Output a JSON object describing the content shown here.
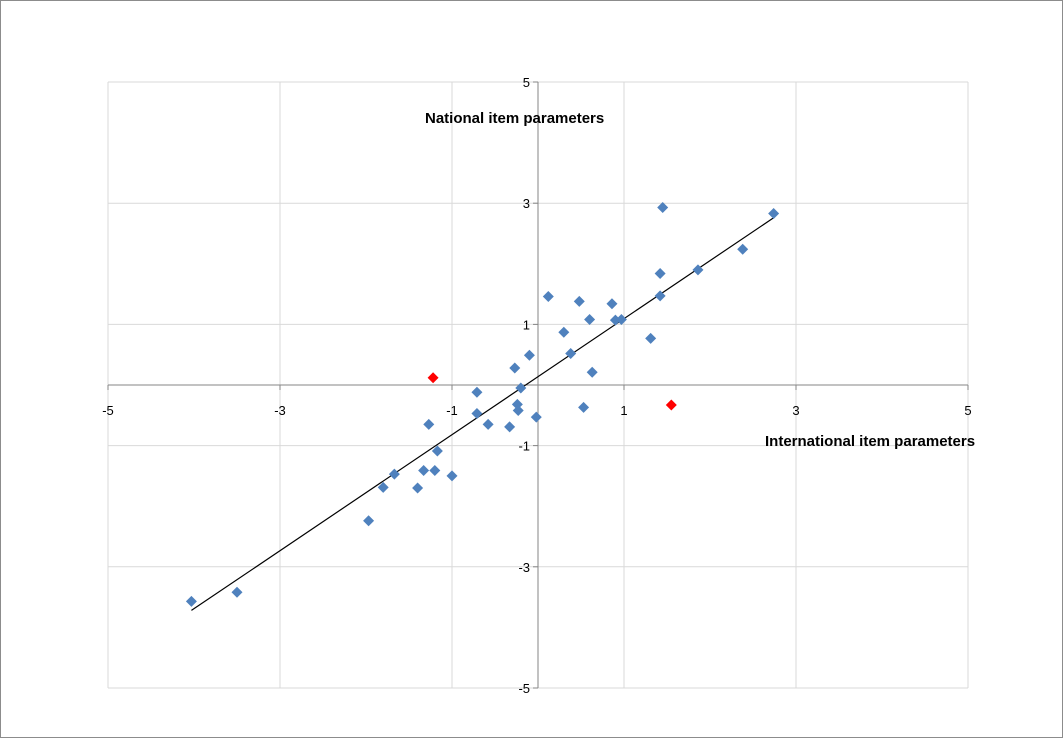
{
  "chart_data": {
    "type": "scatter",
    "xlabel": "International item parameters",
    "ylabel": "National item parameters",
    "xlim": [
      -5,
      5
    ],
    "ylim": [
      -5,
      5
    ],
    "x_ticks": [
      -5,
      -3,
      -1,
      1,
      3,
      5
    ],
    "y_ticks": [
      -5,
      -3,
      -1,
      1,
      3,
      5
    ],
    "grid": true,
    "legend": "none",
    "series": [
      {
        "color": "#4f81bd",
        "marker": "diamond",
        "points": [
          [
            -4.03,
            -3.57
          ],
          [
            -3.5,
            -3.42
          ],
          [
            -1.97,
            -2.24
          ],
          [
            -1.8,
            -1.69
          ],
          [
            -1.67,
            -1.47
          ],
          [
            -1.4,
            -1.7
          ],
          [
            -1.33,
            -1.41
          ],
          [
            -1.2,
            -1.41
          ],
          [
            -1.17,
            -1.09
          ],
          [
            -1.27,
            -0.65
          ],
          [
            -1.0,
            -1.5
          ],
          [
            -0.71,
            -0.12
          ],
          [
            -0.71,
            -0.47
          ],
          [
            -0.58,
            -0.65
          ],
          [
            -0.33,
            -0.69
          ],
          [
            -0.27,
            0.28
          ],
          [
            -0.24,
            -0.32
          ],
          [
            -0.23,
            -0.42
          ],
          [
            -0.2,
            -0.05
          ],
          [
            -0.1,
            0.49
          ],
          [
            -0.02,
            -0.53
          ],
          [
            0.12,
            1.46
          ],
          [
            0.3,
            0.87
          ],
          [
            0.38,
            0.52
          ],
          [
            0.48,
            1.38
          ],
          [
            0.53,
            -0.37
          ],
          [
            0.6,
            1.08
          ],
          [
            0.63,
            0.21
          ],
          [
            0.86,
            1.34
          ],
          [
            0.9,
            1.07
          ],
          [
            0.97,
            1.08
          ],
          [
            1.31,
            0.77
          ],
          [
            1.42,
            1.84
          ],
          [
            1.42,
            1.47
          ],
          [
            1.45,
            2.93
          ],
          [
            1.86,
            1.9
          ],
          [
            2.38,
            2.24
          ],
          [
            2.74,
            2.83
          ]
        ]
      },
      {
        "color": "#ff0000",
        "marker": "diamond",
        "points": [
          [
            -1.22,
            0.12
          ],
          [
            1.55,
            -0.33
          ]
        ]
      }
    ],
    "trendline": {
      "color": "#000000",
      "from": [
        -4.03,
        -3.72
      ],
      "to": [
        2.74,
        2.76
      ]
    }
  }
}
